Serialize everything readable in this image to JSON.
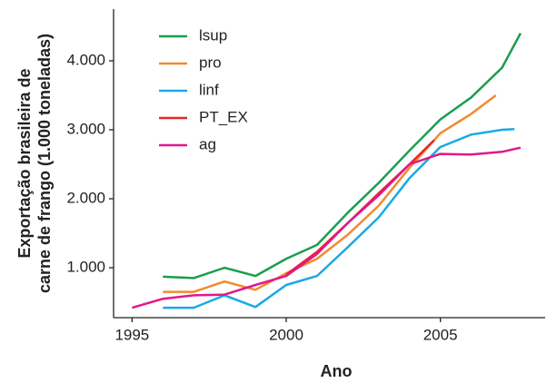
{
  "chart_data": {
    "type": "line",
    "xlabel": "Ano",
    "ylabel": [
      "Exportação brasileira de",
      "carne de frango (1.000 toneladas)"
    ],
    "xlim": [
      1994.4,
      2008.4
    ],
    "ylim": [
      276,
      4750
    ],
    "xticks": [
      1995,
      2000,
      2005
    ],
    "yticks": [
      {
        "value": 1000,
        "label": "1.000"
      },
      {
        "value": 2000,
        "label": "2.000"
      },
      {
        "value": 3000,
        "label": "3.000"
      },
      {
        "value": 4000,
        "label": "4.000"
      }
    ],
    "grid": false,
    "legend": "upper-left",
    "series": [
      {
        "name": "lsup",
        "color": "#1a9e4e",
        "x": [
          1996,
          1997,
          1998,
          1999,
          2000,
          2001,
          2002,
          2003,
          2004,
          2005,
          2006,
          2007,
          2007.6
        ],
        "values": [
          870,
          850,
          1000,
          880,
          1130,
          1330,
          1800,
          2230,
          2700,
          3150,
          3470,
          3900,
          4400
        ]
      },
      {
        "name": "pro",
        "color": "#f28a2e",
        "x": [
          1996,
          1997,
          1998,
          1999,
          2000,
          2001,
          2002,
          2003,
          2004,
          2005,
          2006,
          2006.8
        ],
        "values": [
          650,
          650,
          800,
          680,
          920,
          1130,
          1480,
          1900,
          2450,
          2950,
          3230,
          3500
        ]
      },
      {
        "name": "linf",
        "color": "#1aa9e6",
        "x": [
          1996,
          1997,
          1998,
          1999,
          2000,
          2001,
          2002,
          2003,
          2004,
          2005,
          2006,
          2007,
          2007.4
        ],
        "values": [
          420,
          420,
          600,
          430,
          750,
          880,
          1300,
          1730,
          2300,
          2750,
          2930,
          3000,
          3010
        ]
      },
      {
        "name": "PT_EX",
        "color": "#e8262b",
        "x": [
          2000,
          2001,
          2002,
          2003,
          2004,
          2004.8
        ],
        "values": [
          900,
          1230,
          1650,
          2080,
          2500,
          2850
        ]
      },
      {
        "name": "ag",
        "color": "#e0198a",
        "x": [
          1995,
          1996,
          1997,
          1998,
          1999,
          2000,
          2001,
          2002,
          2003,
          2004,
          2005,
          2006,
          2007,
          2007.6
        ],
        "values": [
          420,
          550,
          600,
          610,
          750,
          880,
          1200,
          1650,
          2050,
          2500,
          2650,
          2640,
          2680,
          2740
        ]
      }
    ]
  }
}
